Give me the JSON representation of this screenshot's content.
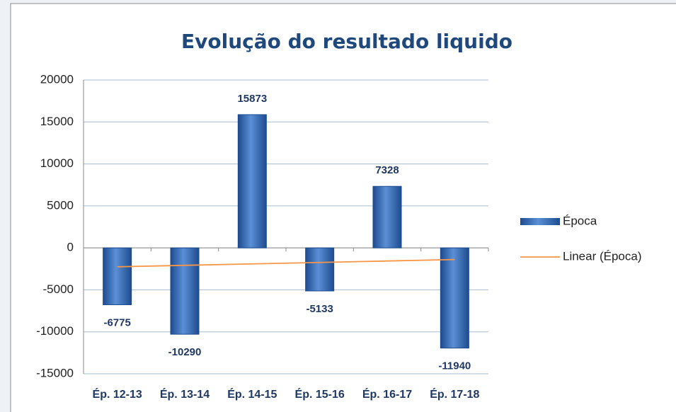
{
  "chart_data": {
    "type": "bar",
    "title": "Evolução do resultado liquido",
    "categories": [
      "Ép. 12-13",
      "Ép. 13-14",
      "Ép. 14-15",
      "Ép. 15-16",
      "Ép. 16-17",
      "Ép. 17-18"
    ],
    "series": [
      {
        "name": "Época",
        "color": "#2f5fa8",
        "values": [
          -6775,
          -10290,
          15873,
          -5133,
          7328,
          -11940
        ]
      },
      {
        "name": "Linear (Época)",
        "type": "line",
        "color": "#f79646",
        "values": [
          -2253,
          -2081,
          -1909,
          -1737,
          -1565,
          -1392
        ]
      }
    ],
    "ylim": [
      -15000,
      20000
    ],
    "yticks": [
      -15000,
      -10000,
      -5000,
      0,
      5000,
      10000,
      15000,
      20000
    ],
    "grid": true,
    "legend": "right"
  }
}
